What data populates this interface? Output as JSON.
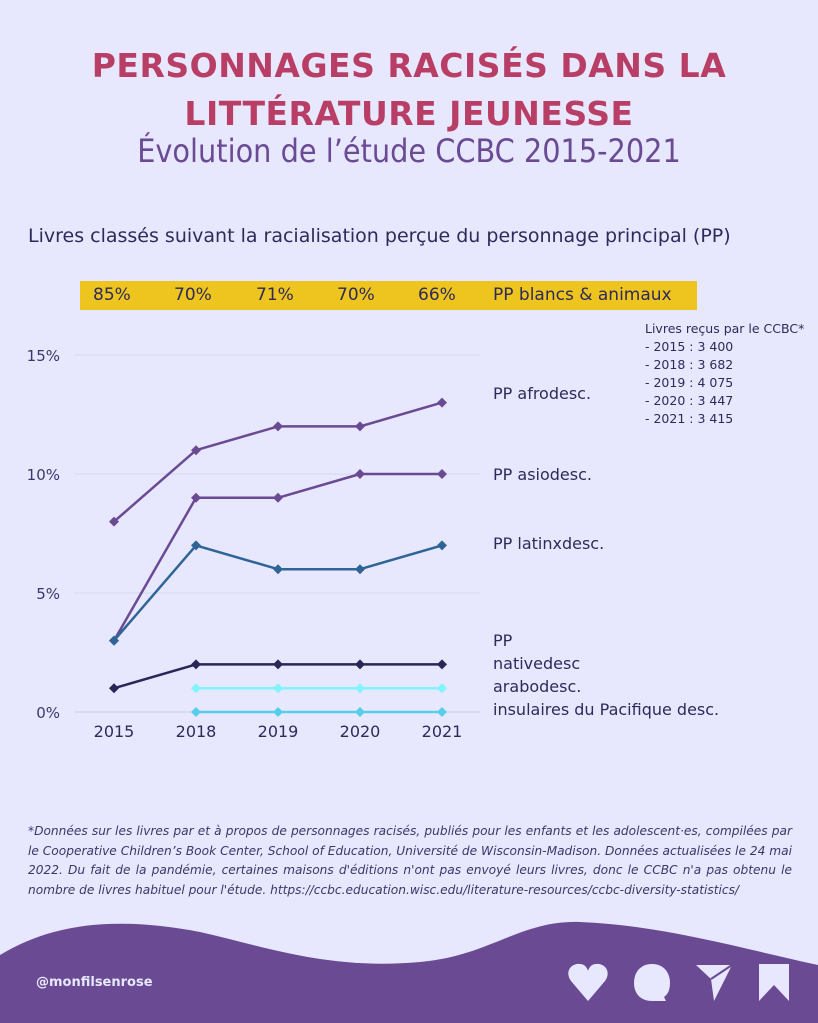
{
  "header": {
    "title_line1": "PERSONNAGES RACISÉS DANS LA",
    "title_line2": "LITTÉRATURE JEUNESSE",
    "subtitle": "Évolution de l’étude CCBC 2015-2021"
  },
  "colors": {
    "background": "#e7e8fd",
    "title": "#b93e66",
    "subtitle": "#6b4a94",
    "band": "#eec41f",
    "footer": "#6b4a94"
  },
  "chart_data": {
    "type": "line",
    "title": "Livres classés suivant la racialisation perçue du personnage principal (PP)",
    "x": [
      "2015",
      "2018",
      "2019",
      "2020",
      "2021"
    ],
    "xlabel": "",
    "ylabel": "",
    "ylim": [
      0,
      15
    ],
    "yticks": [
      0,
      5,
      10,
      15
    ],
    "ytick_labels": [
      "0%",
      "5%",
      "10%",
      "15%"
    ],
    "grid": true,
    "series": [
      {
        "name": "PP afrodesc.",
        "color": "#6b4a94",
        "values": [
          8,
          11,
          12,
          12,
          13
        ]
      },
      {
        "name": "PP asiodesc.",
        "color": "#6b4a94",
        "values": [
          3,
          9,
          9,
          10,
          10
        ]
      },
      {
        "name": "PP latinxdesc.",
        "color": "#2f6496",
        "values": [
          3,
          7,
          6,
          6,
          7
        ]
      },
      {
        "name": "PP nativedesc",
        "color": "#2a2658",
        "values": [
          1,
          2,
          2,
          2,
          2
        ]
      },
      {
        "name": "arabodesc.",
        "color": "#7ff4fb",
        "values": [
          null,
          1,
          1,
          1,
          1
        ]
      },
      {
        "name": "insulaires du Pacifique desc.",
        "color": "#58cdea",
        "values": [
          null,
          0,
          0,
          0,
          0
        ]
      }
    ],
    "label_prefix_pp": "PP",
    "white_animals": {
      "name": "PP blancs & animaux",
      "values": [
        "85%",
        "70%",
        "71%",
        "70%",
        "66%"
      ]
    },
    "books_received": {
      "title": "Livres reçus par le CCBC*",
      "items": [
        "- 2015 : 3 400",
        "- 2018 : 3 682",
        "- 2019 : 4 075",
        "- 2020 : 3 447",
        "- 2021 : 3 415"
      ]
    }
  },
  "footnote": "*Données sur les livres par et à propos de personnages racisés, publiés pour les enfants et les adolescent·es, compilées par le Cooperative Children’s Book Center, School of Education, Université de Wisconsin-Madison. Données actualisées le 24 mai 2022. Du fait de la pandémie, certaines maisons d'éditions n'ont pas envoyé leurs livres, donc le CCBC n'a pas obtenu le nombre de livres habituel pour l'étude. https://ccbc.education.wisc.edu/literature-resources/ccbc-diversity-statistics/",
  "footer": {
    "handle": "@monfilsenrose",
    "icons": [
      "heart-icon",
      "comment-icon",
      "send-icon",
      "bookmark-icon"
    ]
  }
}
